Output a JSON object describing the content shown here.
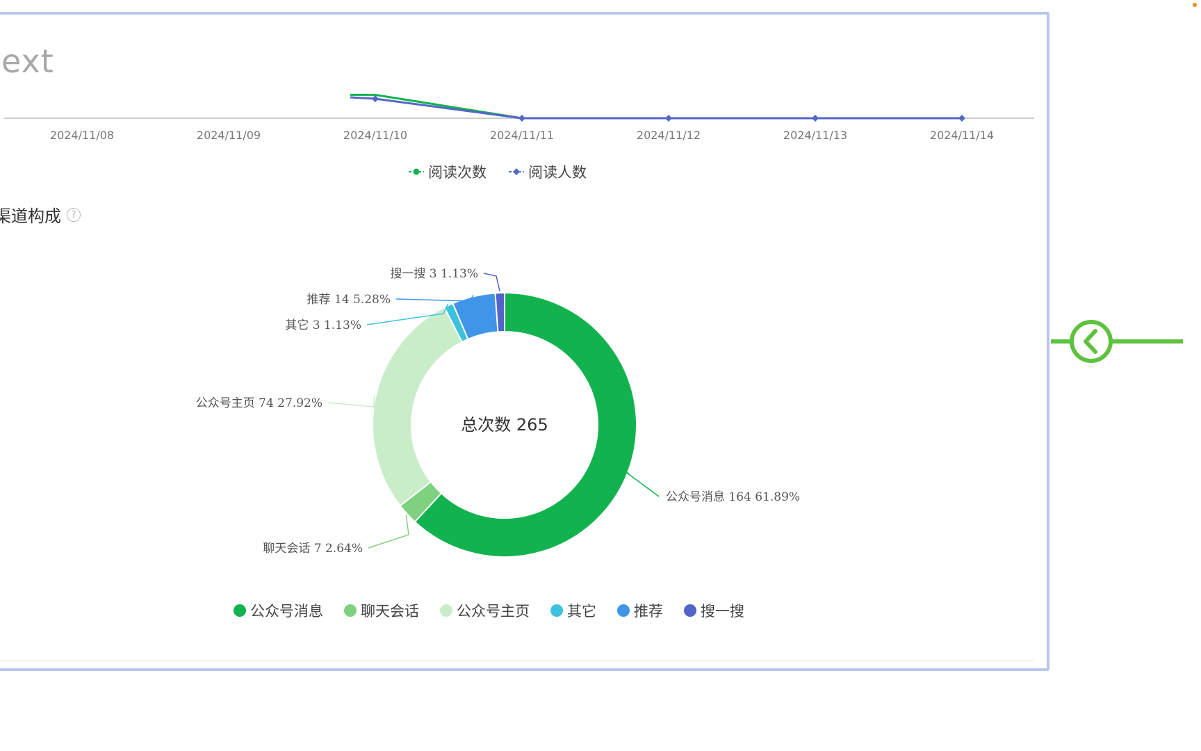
{
  "panel": {
    "title_fragment": "ext",
    "section_title": "渠道构成",
    "help_icon_label": "?"
  },
  "colors": {
    "read_count": "#12b24f",
    "reader_count": "#5468c8",
    "panel_border": "#b9c6ee",
    "side_control": "#5fc23f"
  },
  "chart_data": [
    {
      "type": "line",
      "x": [
        "2024/11/08",
        "2024/11/09",
        "2024/11/10",
        "2024/11/11",
        "2024/11/12",
        "2024/11/13",
        "2024/11/14"
      ],
      "x_visible_start": 1.8,
      "series": [
        {
          "name": "阅读次数",
          "values": [
            null,
            null,
            2.4,
            0,
            0,
            0,
            0
          ],
          "color": "#12b24f",
          "marker": "circle"
        },
        {
          "name": "阅读人数",
          "values": [
            null,
            null,
            2,
            0,
            0,
            0,
            0
          ],
          "color": "#5468c8",
          "marker": "diamond"
        }
      ],
      "y_visible_max": 2.6,
      "legend": "bottom-center",
      "grid": false
    },
    {
      "type": "pie",
      "donut": true,
      "center_label": "总次数 265",
      "slices": [
        {
          "name": "公众号消息",
          "value": 164,
          "percent": "61.89%",
          "label": "公众号消息 164 61.89%",
          "color": "#12b24f"
        },
        {
          "name": "聊天会话",
          "value": 7,
          "percent": "2.64%",
          "label": "聊天会话 7 2.64%",
          "color": "#7fd07f"
        },
        {
          "name": "公众号主页",
          "value": 74,
          "percent": "27.92%",
          "label": "公众号主页 74 27.92%",
          "color": "#c9ecc9"
        },
        {
          "name": "其它",
          "value": 3,
          "percent": "1.13%",
          "label": "其它 3 1.13%",
          "color": "#3cc2dc"
        },
        {
          "name": "推荐",
          "value": 14,
          "percent": "5.28%",
          "label": "推荐 14 5.28%",
          "color": "#3f96e8"
        },
        {
          "name": "搜一搜",
          "value": 3,
          "percent": "1.13%",
          "label": "搜一搜 3 1.13%",
          "color": "#5363c9"
        }
      ],
      "legend": "bottom-center"
    }
  ]
}
